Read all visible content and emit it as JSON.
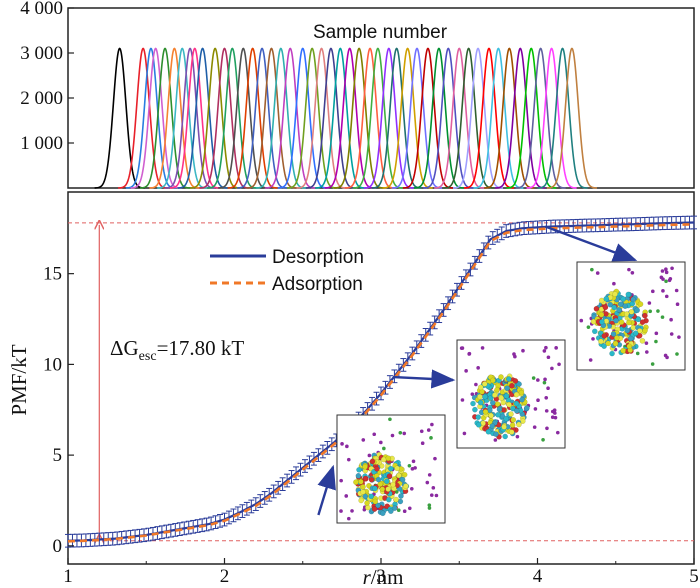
{
  "chart_data": [
    {
      "type": "line",
      "title": "Sample number",
      "yticks": [
        "4 000",
        "3 000",
        "2 000",
        "1 000"
      ],
      "ytick_values": [
        4000,
        3000,
        2000,
        1000
      ],
      "xlim": [
        1,
        5
      ],
      "ylim": [
        0,
        4000
      ],
      "series": {
        "count": 47,
        "peak_height": 3100,
        "sigma": 0.04,
        "centers": [
          1.33,
          1.48,
          1.53,
          1.56,
          1.62,
          1.68,
          1.73,
          1.78,
          1.81,
          1.86,
          1.94,
          2.0,
          2.05,
          2.12,
          2.18,
          2.24,
          2.3,
          2.36,
          2.42,
          2.5,
          2.56,
          2.62,
          2.68,
          2.74,
          2.8,
          2.86,
          2.93,
          2.98,
          3.05,
          3.1,
          3.17,
          3.23,
          3.3,
          3.37,
          3.43,
          3.5,
          3.56,
          3.62,
          3.69,
          3.75,
          3.82,
          3.89,
          3.96,
          4.02,
          4.09,
          4.16,
          4.22
        ],
        "colors": [
          "#000000",
          "#e8202a",
          "#2a7de1",
          "#d05fd0",
          "#2d8f2d",
          "#f58231",
          "#3cb7c4",
          "#7d4fb0",
          "#ff3388",
          "#1f5fa8",
          "#8b8b00",
          "#b03060",
          "#20a060",
          "#505050",
          "#e04000",
          "#4060c0",
          "#a06030",
          "#30b0b0",
          "#c040c0",
          "#3070ff",
          "#70a020",
          "#e08080",
          "#404090",
          "#00a0a0",
          "#b000b0",
          "#808000",
          "#ff6040",
          "#40b040",
          "#9030ff",
          "#207070",
          "#d0a000",
          "#7070ff",
          "#c00000",
          "#009030",
          "#5050c0",
          "#e060a0",
          "#306030",
          "#a0a0ff",
          "#ff0000",
          "#40c0e0",
          "#a05000",
          "#8000a0",
          "#00c000",
          "#6060a0",
          "#ff40ff",
          "#208080",
          "#c08040"
        ]
      }
    },
    {
      "type": "line",
      "xlabel_italic": "r",
      "xlabel_rest": "/nm",
      "ylabel": "PMF/kT",
      "xlim": [
        1,
        5
      ],
      "ylim": [
        -1,
        19.5
      ],
      "xticks": [
        1,
        2,
        3,
        4,
        5
      ],
      "yticks": [
        0,
        5,
        10,
        15
      ],
      "reference_lines": {
        "low": 0.28,
        "high": 17.8,
        "color": "#e06060"
      },
      "series": [
        {
          "name": "Desorption",
          "style": "solid",
          "color": "#2a3c9a",
          "x": [
            1.0,
            1.1,
            1.2,
            1.3,
            1.4,
            1.5,
            1.6,
            1.7,
            1.8,
            1.9,
            2.0,
            2.1,
            2.2,
            2.3,
            2.4,
            2.5,
            2.6,
            2.7,
            2.8,
            2.9,
            3.0,
            3.1,
            3.2,
            3.3,
            3.4,
            3.5,
            3.6,
            3.7,
            3.8,
            3.9,
            4.0,
            4.1,
            4.2,
            4.3,
            4.4,
            4.5,
            4.6,
            4.7,
            4.8,
            4.9,
            5.0
          ],
          "y": [
            0.28,
            0.3,
            0.35,
            0.4,
            0.5,
            0.6,
            0.75,
            0.9,
            1.05,
            1.2,
            1.45,
            1.85,
            2.3,
            2.9,
            3.6,
            4.3,
            5.0,
            5.7,
            6.5,
            7.4,
            8.4,
            9.5,
            10.6,
            11.8,
            13.0,
            14.3,
            15.6,
            16.9,
            17.35,
            17.5,
            17.55,
            17.6,
            17.62,
            17.65,
            17.67,
            17.7,
            17.72,
            17.75,
            17.78,
            17.8,
            17.82
          ],
          "error": 0.35
        },
        {
          "name": "Adsorption",
          "style": "dashed",
          "color": "#f07828",
          "x": [
            1.0,
            1.1,
            1.2,
            1.3,
            1.4,
            1.5,
            1.6,
            1.7,
            1.8,
            1.9,
            2.0,
            2.1,
            2.2,
            2.3,
            2.4,
            2.5,
            2.6,
            2.7,
            2.8,
            2.9,
            3.0,
            3.1,
            3.2,
            3.3,
            3.4,
            3.5,
            3.6,
            3.7,
            3.8,
            3.9,
            4.0,
            4.1,
            4.2,
            4.3,
            4.4,
            4.5,
            4.6,
            4.7,
            4.8,
            4.9,
            5.0
          ],
          "y": [
            0.25,
            0.28,
            0.32,
            0.38,
            0.47,
            0.57,
            0.72,
            0.86,
            1.0,
            1.15,
            1.38,
            1.78,
            2.2,
            2.8,
            3.5,
            4.2,
            4.9,
            5.6,
            6.4,
            7.3,
            8.3,
            9.4,
            10.5,
            11.7,
            12.9,
            14.2,
            15.5,
            16.8,
            17.25,
            17.4,
            17.45,
            17.5,
            17.52,
            17.55,
            17.57,
            17.6,
            17.62,
            17.65,
            17.68,
            17.7,
            17.72
          ]
        }
      ],
      "annotation": {
        "delta": "ΔG",
        "sub": "esc",
        "rest": "=17.80 kT"
      },
      "insets": [
        {
          "name": "compact",
          "arrow_to": {
            "x": 2.6,
            "y": 1.7
          }
        },
        {
          "name": "mid",
          "arrow_to": {
            "x": 3.08,
            "y": 9.3
          }
        },
        {
          "name": "far",
          "arrow_to": {
            "x": 4.05,
            "y": 17.6
          }
        }
      ]
    }
  ]
}
